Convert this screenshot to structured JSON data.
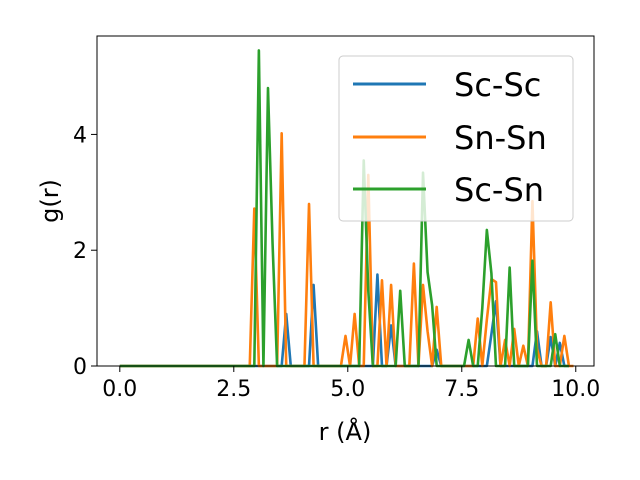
{
  "chart_data": {
    "type": "line",
    "xlabel": "r (Å)",
    "ylabel": "g(r)",
    "xlim": [
      -0.5,
      10.4
    ],
    "ylim": [
      0,
      5.7
    ],
    "xticks": [
      0.0,
      2.5,
      5.0,
      7.5,
      10.0
    ],
    "xtick_labels": [
      "0.0",
      "2.5",
      "5.0",
      "7.5",
      "10.0"
    ],
    "yticks": [
      0,
      2,
      4
    ],
    "ytick_labels": [
      "0",
      "2",
      "4"
    ],
    "grid": false,
    "legend_position": "upper-right",
    "series": [
      {
        "name": "Sc-Sc",
        "color": "#1f77b4",
        "x": [
          0.0,
          3.45,
          3.55,
          3.65,
          3.75,
          4.05,
          4.15,
          4.25,
          4.35,
          5.35,
          5.45,
          5.55,
          5.65,
          5.75,
          5.85,
          5.95,
          6.05,
          6.15,
          6.75,
          6.85,
          6.95,
          7.05,
          7.95,
          8.05,
          8.15,
          8.25,
          8.35,
          8.95,
          9.05,
          9.15,
          9.25,
          9.35,
          9.45,
          9.55,
          9.65,
          9.75,
          9.85
        ],
        "y": [
          0.0,
          0.0,
          0.0,
          0.9,
          0.0,
          0.0,
          0.0,
          1.4,
          0.0,
          0.0,
          0.0,
          0.0,
          1.58,
          0.0,
          0.0,
          0.7,
          0.0,
          0.0,
          0.0,
          0.0,
          0.28,
          0.0,
          0.0,
          0.0,
          0.55,
          1.12,
          0.0,
          0.0,
          0.0,
          0.6,
          0.0,
          0.0,
          0.5,
          0.0,
          0.4,
          0.0,
          0.0
        ]
      },
      {
        "name": "Sn-Sn",
        "color": "#ff7f0e",
        "x": [
          0.0,
          2.75,
          2.85,
          2.95,
          3.05,
          3.15,
          3.45,
          3.55,
          3.65,
          4.05,
          4.15,
          4.25,
          4.75,
          4.85,
          4.95,
          5.05,
          5.15,
          5.25,
          5.35,
          5.45,
          5.55,
          5.65,
          5.75,
          5.85,
          5.95,
          6.05,
          6.15,
          6.25,
          6.35,
          6.45,
          6.55,
          6.65,
          6.75,
          6.85,
          6.95,
          7.05,
          7.15,
          7.75,
          7.85,
          7.95,
          8.05,
          8.15,
          8.25,
          8.35,
          8.45,
          8.55,
          8.65,
          8.75,
          8.85,
          8.95,
          9.05,
          9.15,
          9.25,
          9.35,
          9.45,
          9.55,
          9.65,
          9.75,
          9.85,
          9.95
        ],
        "y": [
          0.0,
          0.0,
          0.0,
          2.72,
          0.0,
          0.0,
          0.0,
          4.02,
          0.0,
          0.0,
          2.8,
          0.0,
          0.0,
          0.0,
          0.52,
          0.0,
          0.9,
          0.0,
          0.0,
          3.3,
          0.0,
          0.0,
          1.48,
          0.0,
          1.4,
          0.0,
          0.0,
          0.0,
          0.0,
          1.77,
          0.0,
          1.4,
          0.6,
          0.0,
          1.02,
          0.0,
          0.0,
          0.0,
          0.82,
          0.0,
          0.8,
          1.5,
          1.45,
          0.0,
          0.45,
          0.0,
          0.64,
          0.0,
          0.35,
          0.0,
          2.85,
          0.3,
          0.0,
          0.0,
          1.1,
          0.0,
          0.0,
          0.52,
          0.0,
          0.0
        ]
      },
      {
        "name": "Sc-Sn",
        "color": "#2ca02c",
        "x": [
          0.0,
          2.85,
          2.95,
          3.05,
          3.15,
          3.25,
          3.35,
          3.45,
          5.05,
          5.15,
          5.25,
          5.35,
          5.45,
          5.55,
          5.65,
          5.75,
          5.85,
          6.05,
          6.15,
          6.25,
          6.55,
          6.65,
          6.75,
          6.85,
          6.95,
          7.55,
          7.65,
          7.75,
          7.85,
          7.95,
          8.05,
          8.15,
          8.25,
          8.45,
          8.55,
          8.65,
          8.75,
          8.85,
          8.95,
          9.05,
          9.15,
          9.25,
          9.35,
          9.45,
          9.55,
          9.65,
          9.75,
          9.85
        ],
        "y": [
          0.0,
          0.0,
          0.0,
          5.45,
          0.0,
          4.8,
          2.12,
          0.0,
          0.0,
          0.0,
          0.0,
          3.55,
          1.3,
          0.0,
          0.0,
          0.0,
          0.0,
          0.0,
          1.3,
          0.0,
          0.0,
          3.34,
          1.62,
          1.05,
          0.0,
          0.0,
          0.45,
          0.0,
          0.0,
          1.0,
          2.35,
          1.6,
          0.0,
          0.0,
          1.7,
          0.0,
          0.0,
          0.0,
          0.0,
          1.82,
          0.0,
          0.0,
          0.0,
          0.0,
          0.55,
          0.0,
          0.0,
          0.0
        ]
      }
    ]
  }
}
